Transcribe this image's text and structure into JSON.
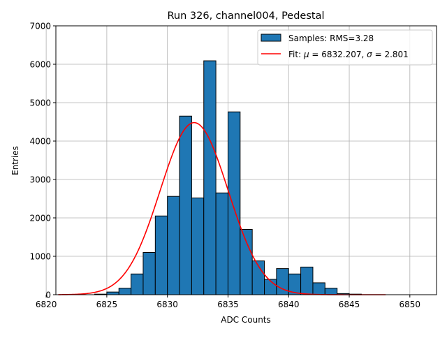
{
  "chart_data": {
    "type": "bar",
    "title": "Run 326, channel004, Pedestal",
    "xlabel": "ADC Counts",
    "ylabel": "Entries",
    "xlim": [
      6820.8,
      6852.2
    ],
    "ylim": [
      0,
      7000
    ],
    "grid": true,
    "legend_position": "top-right",
    "x_ticks": [
      6820,
      6825,
      6830,
      6835,
      6840,
      6845,
      6850
    ],
    "y_ticks": [
      0,
      1000,
      2000,
      3000,
      4000,
      5000,
      6000,
      7000
    ],
    "bin_width": 1,
    "bins": [
      {
        "left": 6824,
        "value": 15
      },
      {
        "left": 6825,
        "value": 70
      },
      {
        "left": 6826,
        "value": 170
      },
      {
        "left": 6827,
        "value": 540
      },
      {
        "left": 6828,
        "value": 1100
      },
      {
        "left": 6829,
        "value": 2050
      },
      {
        "left": 6830,
        "value": 2560
      },
      {
        "left": 6831,
        "value": 4650
      },
      {
        "left": 6832,
        "value": 2520
      },
      {
        "left": 6833,
        "value": 6090
      },
      {
        "left": 6834,
        "value": 2650
      },
      {
        "left": 6835,
        "value": 4760
      },
      {
        "left": 6836,
        "value": 1700
      },
      {
        "left": 6837,
        "value": 880
      },
      {
        "left": 6838,
        "value": 400
      },
      {
        "left": 6839,
        "value": 680
      },
      {
        "left": 6840,
        "value": 540
      },
      {
        "left": 6841,
        "value": 720
      },
      {
        "left": 6842,
        "value": 310
      },
      {
        "left": 6843,
        "value": 170
      },
      {
        "left": 6844,
        "value": 30
      },
      {
        "left": 6845,
        "value": 15
      }
    ],
    "fit": {
      "mu": 6832.207,
      "sigma": 2.801,
      "amplitude": 4480,
      "x_start": 6821,
      "x_end": 6848
    },
    "series": [
      {
        "name": "Samples",
        "legend_label": "Samples: RMS=3.28",
        "kind": "histogram",
        "color": "#1f77b4"
      },
      {
        "name": "Fit",
        "legend_label_prefix": "Fit: ",
        "legend_mu_symbol": "μ",
        "legend_mu_value": " = 6832.207, ",
        "legend_sigma_symbol": "σ",
        "legend_sigma_value": " = 2.801",
        "kind": "line",
        "color": "#ff0000"
      }
    ]
  }
}
